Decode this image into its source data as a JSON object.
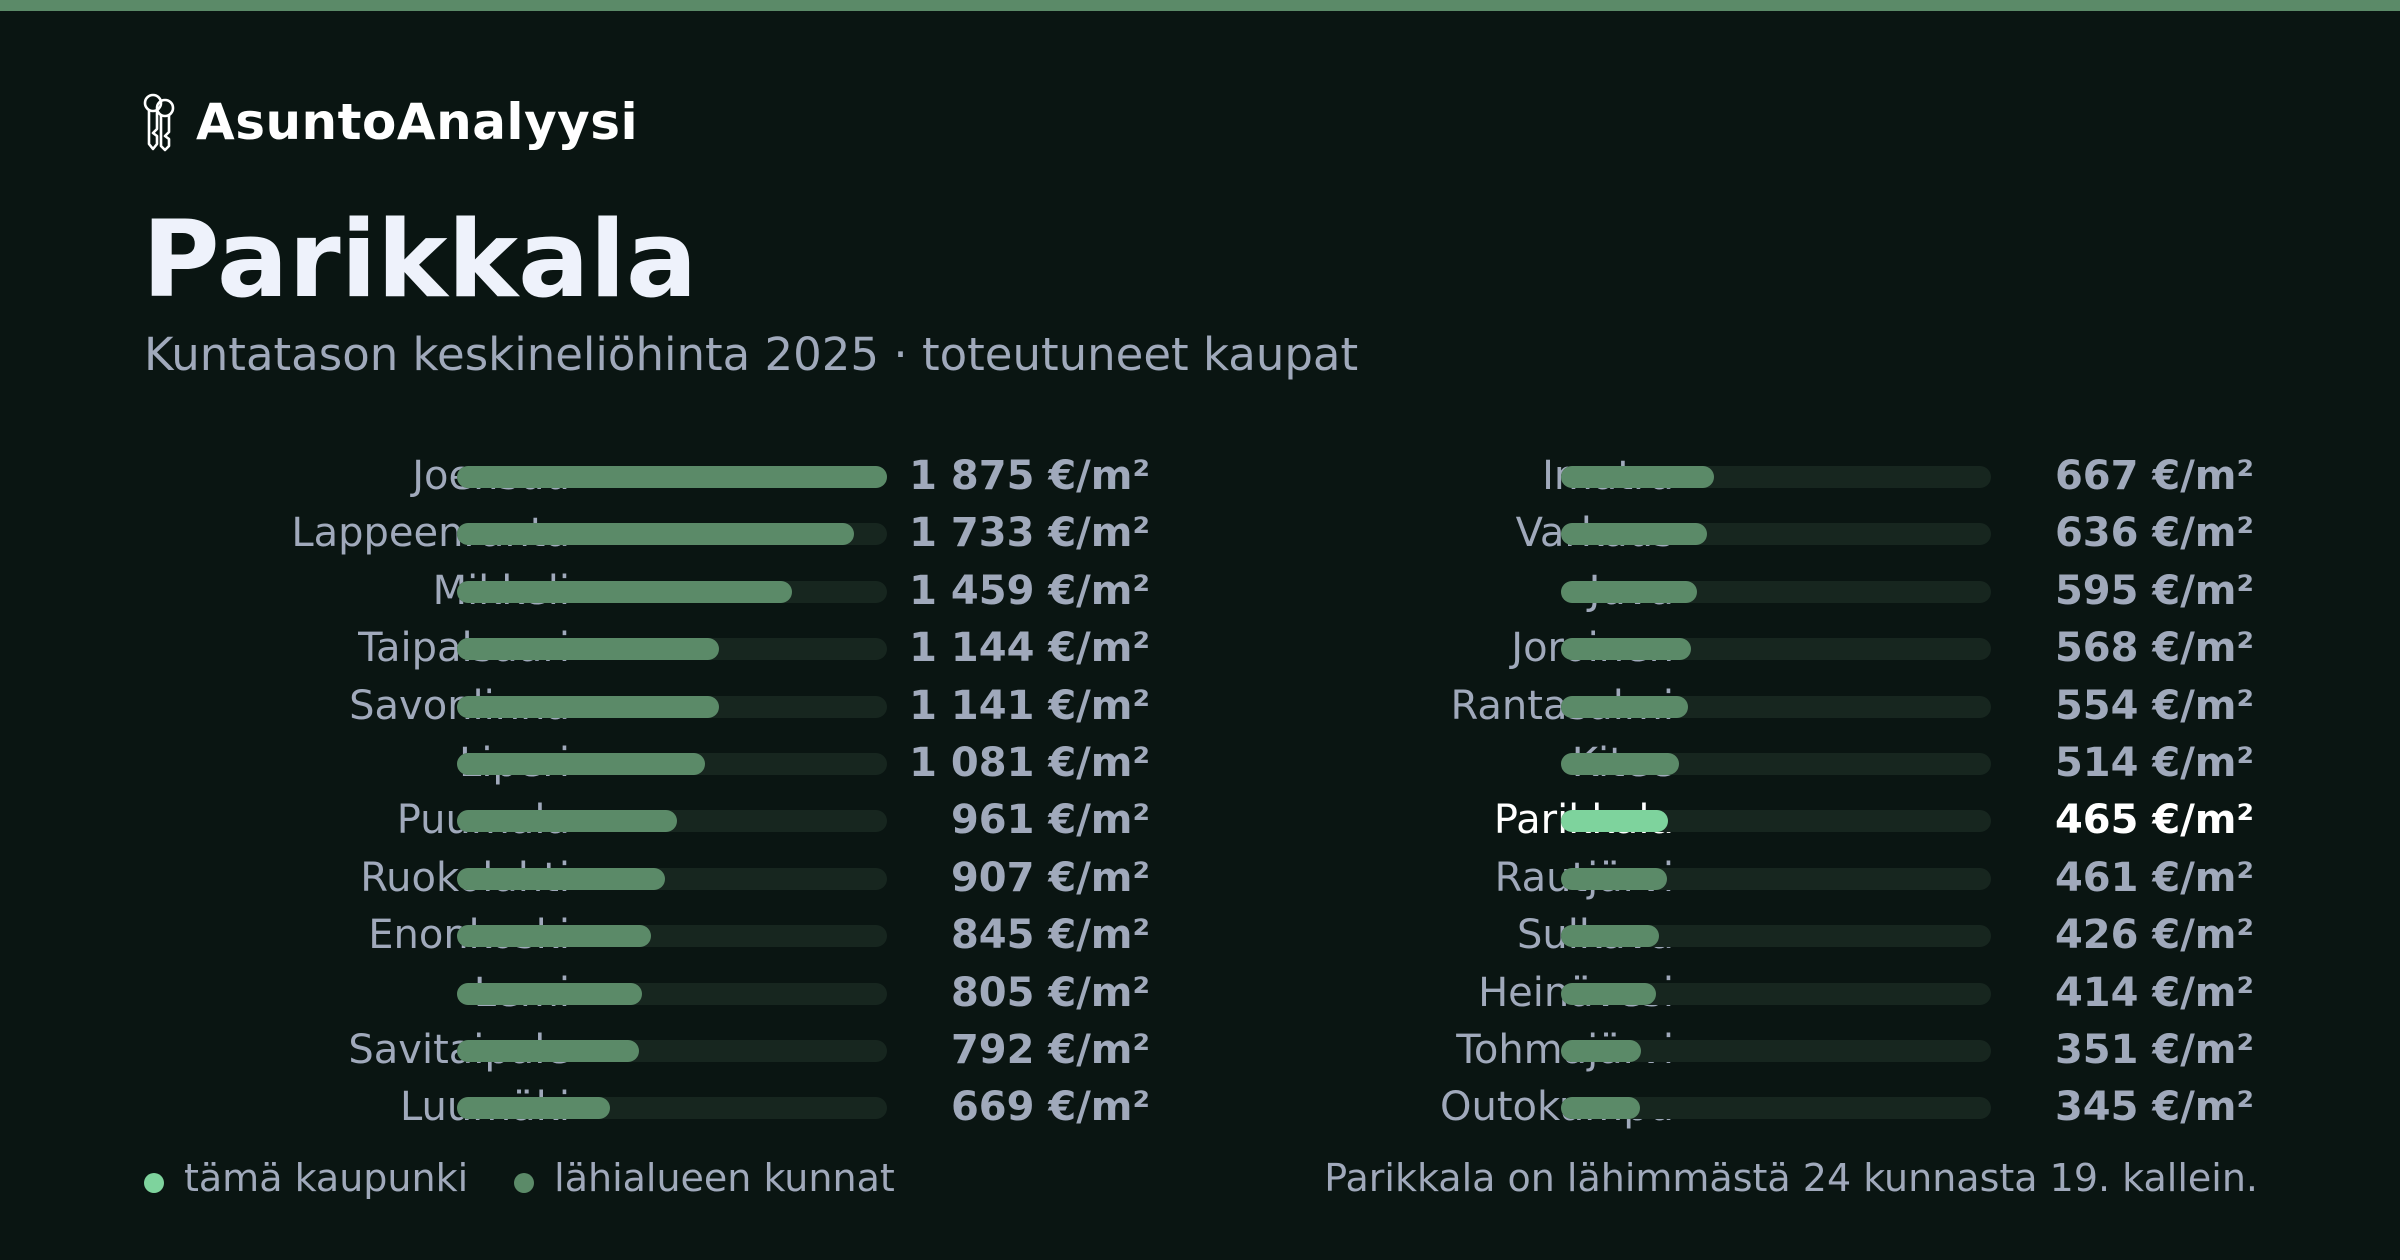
{
  "brand": {
    "name": "AsuntoAnalyysi",
    "icon": "keys-icon"
  },
  "title": "Parikkala",
  "subtitle": "Kuntatason keskineliöhinta 2025 · toteutuneet kaupat",
  "colors": {
    "accent_bar": "#5b8a68",
    "current_bar": "#7ed39d",
    "track": "#17261f",
    "background": "#0a1512"
  },
  "legend": {
    "current": "tämä kaupunki",
    "others": "lähialueen kunnat"
  },
  "footnote": "Parikkala on lähimmästä 24 kunnasta 19. kallein.",
  "chart_data": {
    "type": "bar",
    "orientation": "horizontal",
    "unit": "€/m²",
    "xlim": [
      0,
      1875
    ],
    "highlight": "Parikkala",
    "categories": [
      "Joensuu",
      "Lappeenranta",
      "Mikkeli",
      "Taipalsaari",
      "Savonlinna",
      "Liperi",
      "Puumala",
      "Ruokolahti",
      "Enonkoski",
      "Lemi",
      "Savitaipale",
      "Luumäki",
      "Imatra",
      "Varkaus",
      "Juva",
      "Joroinen",
      "Rantasalmi",
      "Kitee",
      "Parikkala",
      "Rautjärvi",
      "Sulkava",
      "Heinävesi",
      "Tohmajärvi",
      "Outokumpu"
    ],
    "values": [
      1875,
      1733,
      1459,
      1144,
      1141,
      1081,
      961,
      907,
      845,
      805,
      792,
      669,
      667,
      636,
      595,
      568,
      554,
      514,
      465,
      461,
      426,
      414,
      351,
      345
    ],
    "value_labels": [
      "1 875 €/m²",
      "1 733 €/m²",
      "1 459 €/m²",
      "1 144 €/m²",
      "1 141 €/m²",
      "1 081 €/m²",
      "961 €/m²",
      "907 €/m²",
      "845 €/m²",
      "805 €/m²",
      "792 €/m²",
      "669 €/m²",
      "667 €/m²",
      "636 €/m²",
      "595 €/m²",
      "568 €/m²",
      "554 €/m²",
      "514 €/m²",
      "465 €/m²",
      "461 €/m²",
      "426 €/m²",
      "414 €/m²",
      "351 €/m²",
      "345 €/m²"
    ]
  }
}
